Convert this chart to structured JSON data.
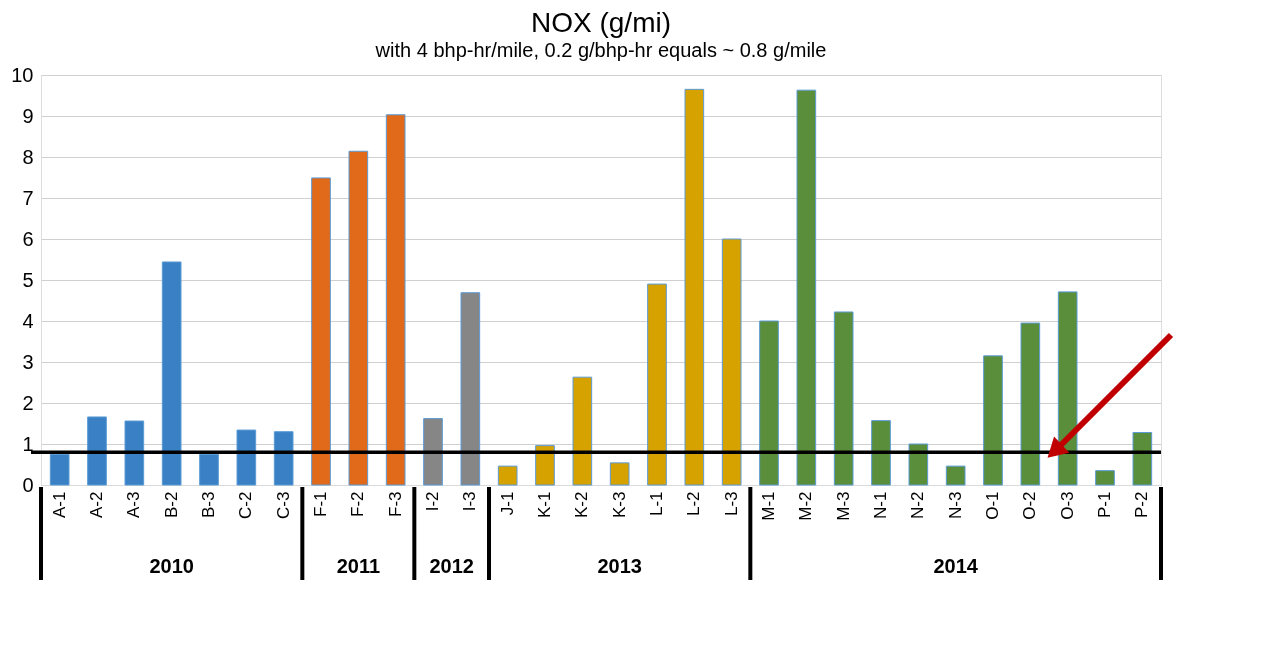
{
  "chart_data": {
    "type": "bar",
    "title": "NOX (g/mi)",
    "subtitle": "with 4 bhp-hr/mile, 0.2 g/bhp-hr equals ~ 0.8 g/mile",
    "categories": [
      "A-1",
      "A-2",
      "A-3",
      "B-2",
      "B-3",
      "C-2",
      "C-3",
      "F-1",
      "F-2",
      "F-3",
      "I-2",
      "I-3",
      "J-1",
      "K-1",
      "K-2",
      "K-3",
      "L-1",
      "L-2",
      "L-3",
      "M-1",
      "M-2",
      "M-3",
      "N-1",
      "N-2",
      "N-3",
      "O-1",
      "O-2",
      "O-3",
      "P-1",
      "P-2"
    ],
    "values": [
      0.75,
      1.66,
      1.56,
      5.44,
      0.75,
      1.34,
      1.3,
      7.49,
      8.14,
      9.03,
      1.62,
      4.69,
      0.46,
      0.96,
      2.63,
      0.54,
      4.9,
      9.65,
      6.0,
      4.0,
      9.63,
      4.22,
      1.57,
      1.0,
      0.46,
      3.15,
      3.95,
      4.71,
      0.35,
      1.28
    ],
    "colors": [
      "#3a80c4",
      "#3a80c4",
      "#3a80c4",
      "#3a80c4",
      "#3a80c4",
      "#3a80c4",
      "#3a80c4",
      "#e0691a",
      "#e0691a",
      "#e0691a",
      "#868686",
      "#868686",
      "#d6a200",
      "#d6a200",
      "#d6a200",
      "#d6a200",
      "#d6a200",
      "#d6a200",
      "#d6a200",
      "#5a8e3a",
      "#5a8e3a",
      "#5a8e3a",
      "#5a8e3a",
      "#5a8e3a",
      "#5a8e3a",
      "#5a8e3a",
      "#5a8e3a",
      "#5a8e3a",
      "#5a8e3a",
      "#5a8e3a"
    ],
    "annotations": [
      "2010",
      "2011",
      "2012",
      "2013",
      "2014"
    ],
    "ylim": [
      0,
      10
    ],
    "yticks": [
      0,
      1,
      2,
      3,
      4,
      5,
      6,
      7,
      8,
      9,
      10
    ],
    "grid": "y",
    "ref_lines": [
      {
        "axis": "y",
        "value": 0.8,
        "color": "#000000"
      }
    ]
  }
}
